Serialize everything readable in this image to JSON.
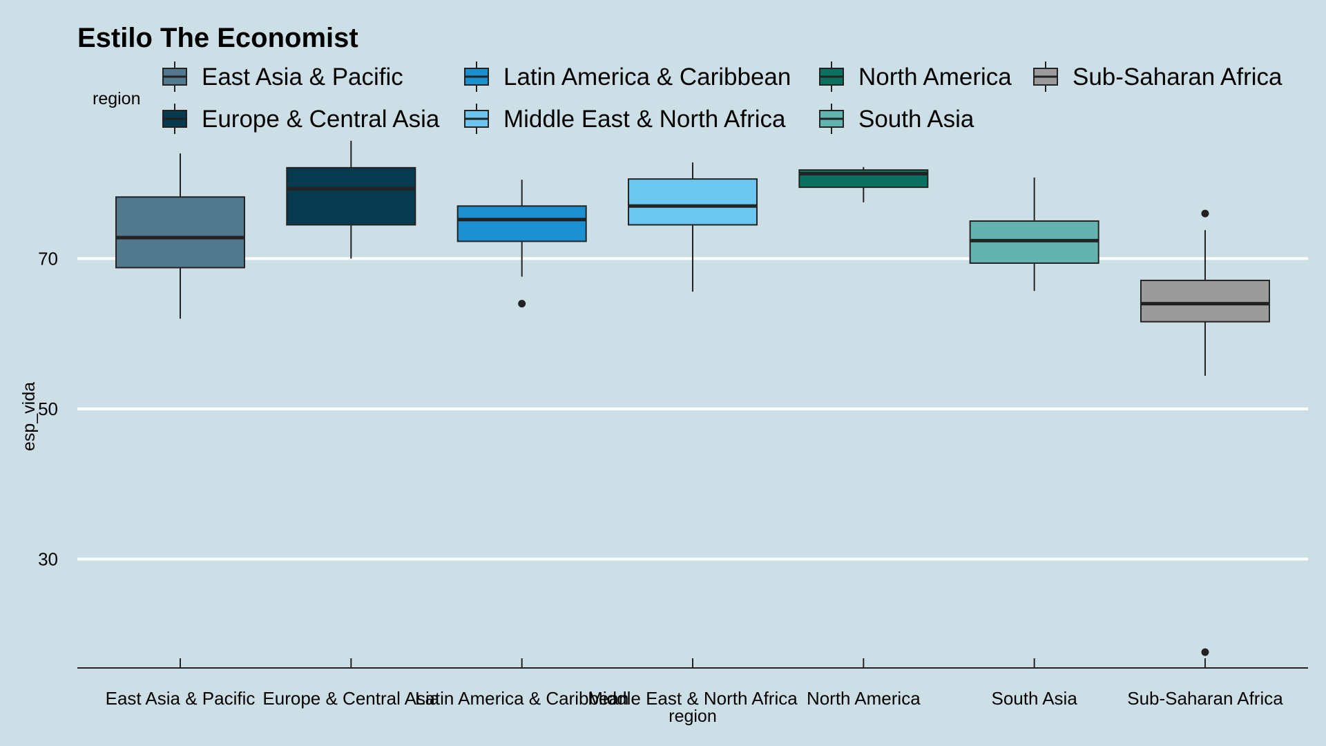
{
  "chart_data": {
    "type": "boxplot",
    "title": "Estilo The Economist",
    "xlabel": "region",
    "ylabel": "esp_vida",
    "legend_title": "region",
    "legend_position": "top",
    "grid": "horizontal major",
    "yticks": [
      30,
      50,
      70
    ],
    "ylim": [
      15.5,
      86.5
    ],
    "categories": [
      "East Asia & Pacific",
      "Europe & Central Asia",
      "Latin America & Caribbean",
      "Middle East & North Africa",
      "North America",
      "South Asia",
      "Sub-Saharan Africa"
    ],
    "colors": [
      "#53798f",
      "#073a4f",
      "#1c8fd1",
      "#6cc7f0",
      "#0a7060",
      "#63b3b0",
      "#9b9b9b"
    ],
    "boxes": [
      {
        "min": 62.0,
        "q1": 68.8,
        "median": 72.8,
        "q3": 78.2,
        "max": 84.0,
        "outliers": []
      },
      {
        "min": 70.0,
        "q1": 74.5,
        "median": 79.3,
        "q3": 82.1,
        "max": 85.7,
        "outliers": []
      },
      {
        "min": 67.6,
        "q1": 72.3,
        "median": 75.2,
        "q3": 77.0,
        "max": 80.5,
        "outliers": [
          64.0
        ]
      },
      {
        "min": 65.6,
        "q1": 74.5,
        "median": 77.0,
        "q3": 80.6,
        "max": 82.8,
        "outliers": []
      },
      {
        "min": 77.5,
        "q1": 79.5,
        "median": 81.3,
        "q3": 81.8,
        "max": 82.2,
        "outliers": []
      },
      {
        "min": 65.7,
        "q1": 69.4,
        "median": 72.4,
        "q3": 75.0,
        "max": 80.8,
        "outliers": []
      },
      {
        "min": 54.4,
        "q1": 61.6,
        "median": 64.0,
        "q3": 67.1,
        "max": 73.8,
        "outliers": [
          76.0,
          17.6
        ]
      }
    ]
  }
}
